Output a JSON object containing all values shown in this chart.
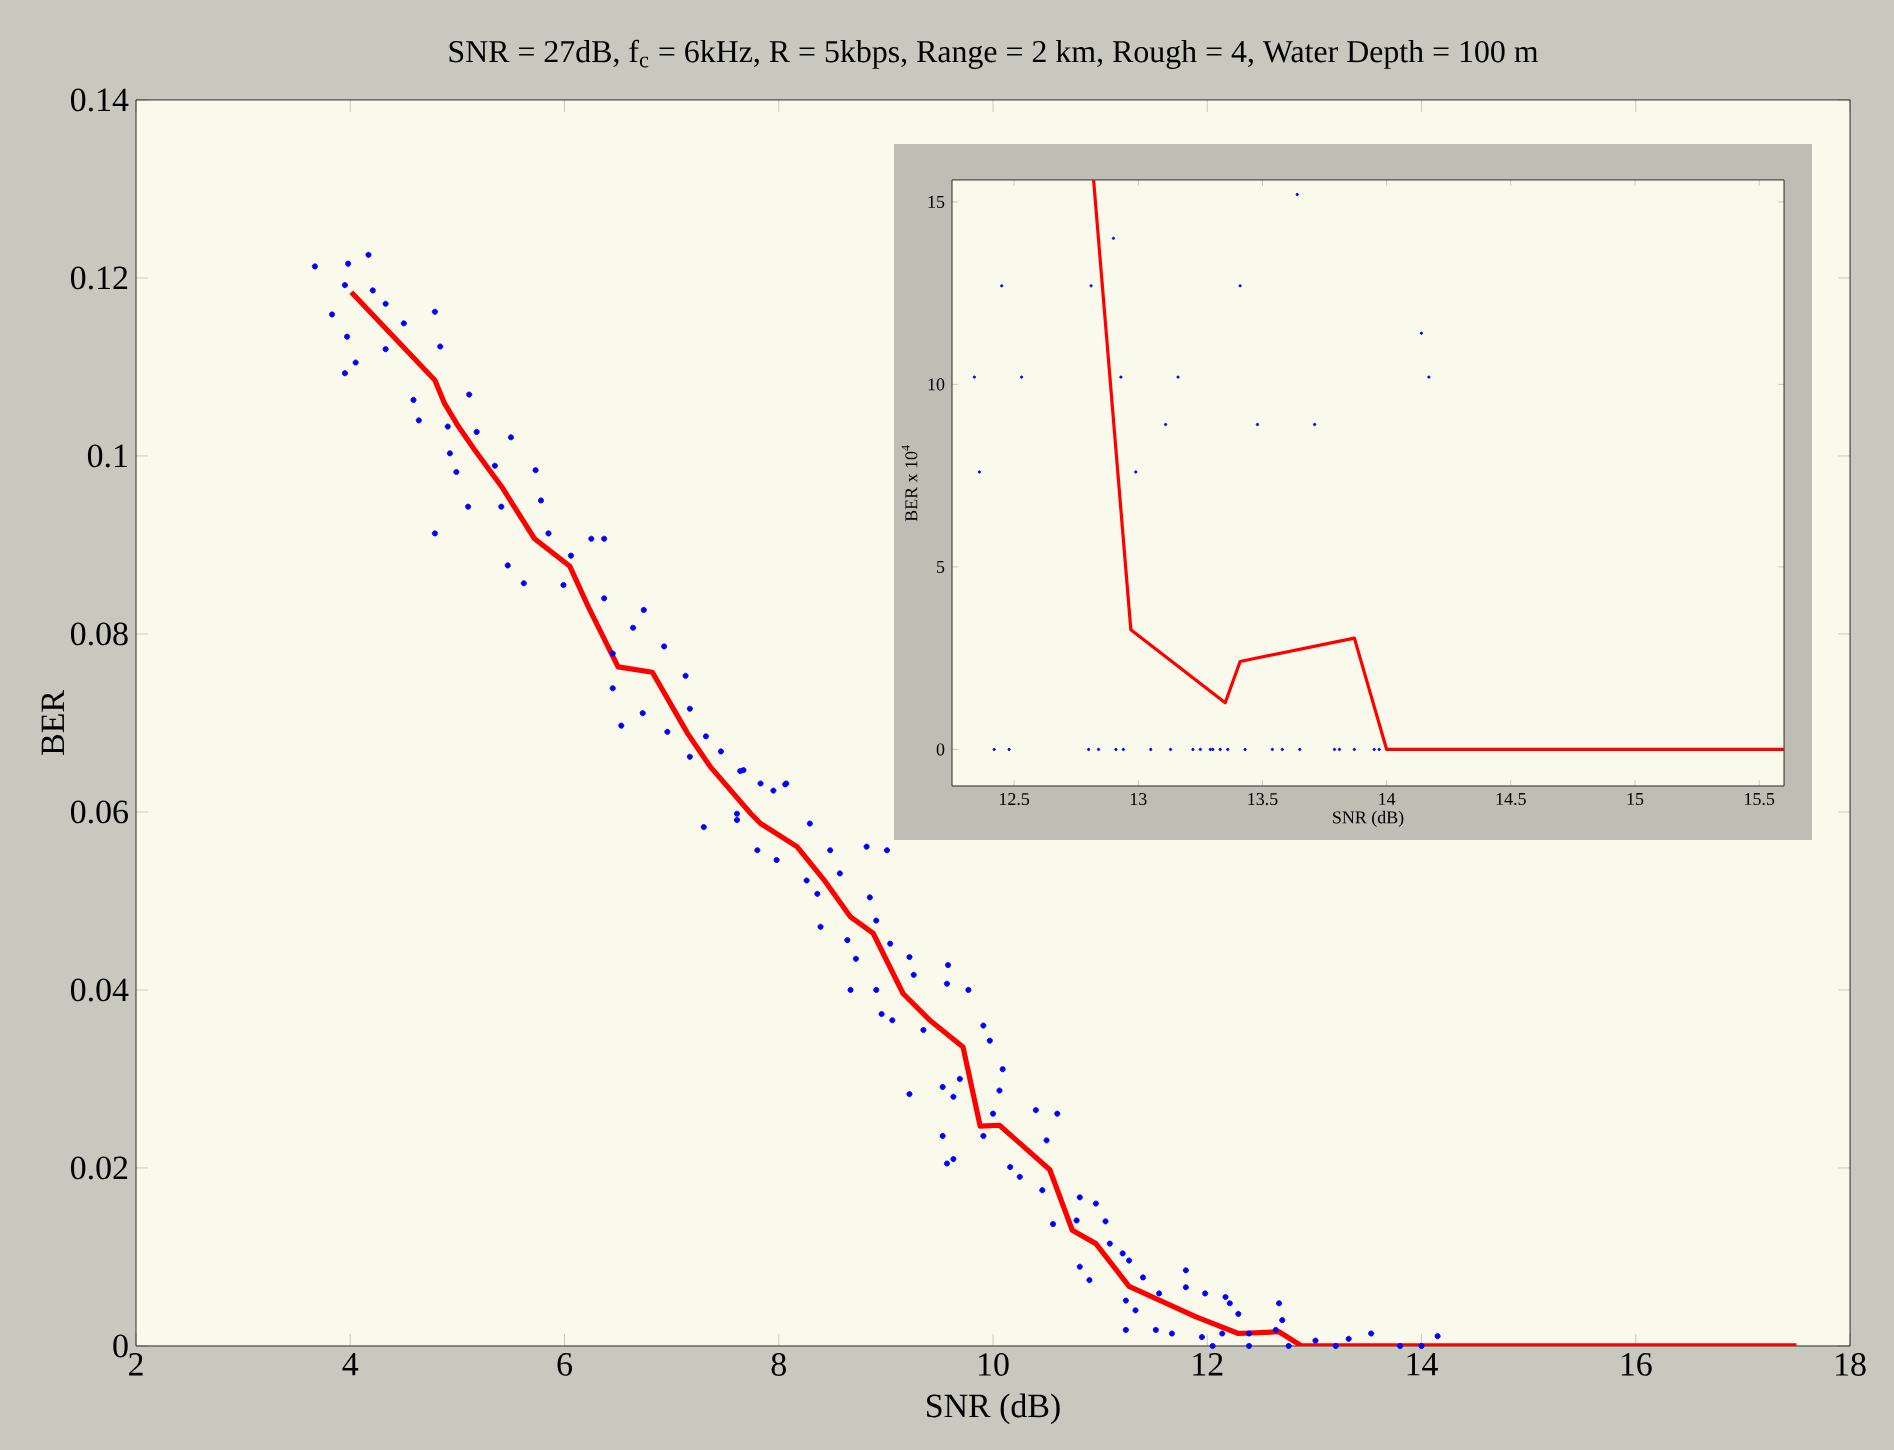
{
  "chart_data": [
    {
      "type": "scatter",
      "title": "SNR = 27dB, f$_{c}$ = 6kHz, R = 5kbps, Range = 2 km, Rough = 4, Water Depth = 100 m",
      "xlabel": "SNR (dB)",
      "ylabel": "BER",
      "xlim": [
        2,
        18
      ],
      "ylim": [
        0,
        0.14
      ],
      "xticks": [
        2,
        4,
        6,
        8,
        10,
        12,
        14,
        16,
        18
      ],
      "yticks": [
        0,
        0.02,
        0.04,
        0.06,
        0.08,
        0.1,
        0.12,
        0.14
      ],
      "series": [
        {
          "color": "#0000ff",
          "x": [
            3.67,
            3.83,
            3.95,
            3.98,
            4.17,
            3.95,
            4.05,
            3.97,
            4.21,
            4.33,
            4.5,
            4.33,
            4.79,
            4.84,
            4.59,
            4.64,
            4.79,
            4.91,
            5.11,
            4.93,
            4.99,
            5.18,
            5.1,
            5.5,
            5.35,
            5.73,
            5.78,
            5.41,
            5.47,
            5.85,
            5.62,
            5.99,
            6.06,
            6.25,
            6.37,
            6.37,
            6.74,
            6.64,
            6.45,
            6.93,
            6.45,
            6.53,
            6.73,
            7.13,
            7.17,
            6.96,
            7.32,
            7.17,
            7.46,
            7.64,
            7.95,
            8.06,
            7.61,
            7.3,
            7.67,
            7.83,
            8.07,
            7.61,
            7.8,
            7.98,
            8.29,
            8.26,
            8.48,
            8.57,
            8.36,
            8.39,
            8.64,
            8.82,
            9.01,
            8.85,
            8.91,
            8.72,
            8.67,
            8.91,
            9.04,
            9.22,
            9.26,
            8.96,
            9.06,
            9.35,
            9.58,
            9.77,
            9.57,
            9.22,
            9.53,
            9.63,
            9.69,
            9.91,
            9.97,
            10.09,
            10.06,
            10.0,
            9.91,
            9.63,
            9.53,
            9.57,
            10.4,
            10.6,
            10.5,
            10.16,
            10.25,
            10.46,
            10.56,
            10.78,
            10.81,
            10.96,
            11.05,
            11.09,
            10.81,
            10.9,
            11.21,
            11.27,
            11.4,
            11.24,
            11.33,
            11.24,
            11.55,
            11.52,
            11.8,
            11.8,
            11.67,
            11.98,
            12.17,
            12.21,
            12.29,
            11.95,
            12.14,
            12.05,
            12.39,
            12.67,
            12.7,
            12.64,
            12.76,
            12.39,
            13.01,
            13.32,
            13.53,
            13.2,
            13.8,
            14.0,
            14.15
          ],
          "values": [
            0.1213,
            0.1159,
            0.1192,
            0.1216,
            0.1226,
            0.1093,
            0.1105,
            0.1134,
            0.1186,
            0.1171,
            0.1149,
            0.112,
            0.1162,
            0.1123,
            0.1063,
            0.104,
            0.0913,
            0.1033,
            0.1069,
            0.1003,
            0.0982,
            0.1027,
            0.0943,
            0.1021,
            0.0989,
            0.0984,
            0.095,
            0.0943,
            0.0877,
            0.0913,
            0.0857,
            0.0855,
            0.0888,
            0.0907,
            0.0907,
            0.084,
            0.0827,
            0.0807,
            0.0778,
            0.0786,
            0.0739,
            0.0697,
            0.0711,
            0.0753,
            0.0716,
            0.069,
            0.0685,
            0.0662,
            0.0668,
            0.0646,
            0.0624,
            0.0631,
            0.0598,
            0.0583,
            0.0647,
            0.0632,
            0.0632,
            0.0591,
            0.0557,
            0.0546,
            0.0587,
            0.0523,
            0.0557,
            0.0531,
            0.0508,
            0.0471,
            0.0456,
            0.0561,
            0.0557,
            0.0504,
            0.0478,
            0.0435,
            0.04,
            0.04,
            0.0452,
            0.0437,
            0.0417,
            0.0373,
            0.0366,
            0.0355,
            0.0428,
            0.04,
            0.0407,
            0.0283,
            0.0291,
            0.028,
            0.03,
            0.036,
            0.0343,
            0.0311,
            0.0287,
            0.0261,
            0.0236,
            0.021,
            0.0236,
            0.0205,
            0.0265,
            0.0261,
            0.0231,
            0.0201,
            0.019,
            0.0175,
            0.0137,
            0.0141,
            0.0167,
            0.016,
            0.014,
            0.0115,
            0.0089,
            0.0074,
            0.0104,
            0.0096,
            0.0077,
            0.0051,
            0.004,
            0.0018,
            0.0059,
            0.0018,
            0.0085,
            0.0066,
            0.0014,
            0.0059,
            0.0055,
            0.0048,
            0.0036,
            0.001,
            0.0014,
            0,
            0.0014,
            0.0048,
            0.0029,
            0.0018,
            0,
            0,
            0.0006,
            0.0008,
            0.0014,
            0,
            0,
            0,
            0.0011
          ]
        },
        {
          "type": "line",
          "color": "#ff0000",
          "x": [
            4.01,
            4.79,
            4.88,
            5.01,
            5.16,
            5.41,
            5.72,
            6.05,
            6.22,
            6.5,
            6.82,
            7.15,
            7.36,
            7.74,
            7.83,
            8.17,
            8.42,
            8.67,
            8.88,
            9.16,
            9.41,
            9.72,
            9.88,
            10.06,
            10.53,
            10.74,
            10.96,
            11.27,
            11.89,
            12.29,
            12.67,
            12.88,
            13.63,
            17.5
          ],
          "values": [
            0.1184,
            0.1085,
            0.1059,
            0.1033,
            0.1007,
            0.0966,
            0.0907,
            0.0876,
            0.0831,
            0.0763,
            0.0757,
            0.0688,
            0.0651,
            0.0598,
            0.0587,
            0.0561,
            0.0524,
            0.0482,
            0.0464,
            0.0396,
            0.0366,
            0.0336,
            0.0247,
            0.0248,
            0.0198,
            0.013,
            0.0115,
            0.0067,
            0.0033,
            0.0014,
            0.0016,
            0,
            0,
            0
          ]
        }
      ]
    },
    {
      "type": "scatter",
      "xlabel": "SNR (dB)",
      "ylabel": "BER x 10$^{4}$",
      "xlim": [
        12.25,
        15.6
      ],
      "ylim": [
        -1,
        15.6
      ],
      "xticks": [
        12.5,
        13,
        13.5,
        14,
        14.5,
        15,
        15.5
      ],
      "yticks": [
        0,
        5,
        10,
        15
      ],
      "series": [
        {
          "color": "#0000ff",
          "x": [
            12.34,
            12.36,
            12.45,
            12.53,
            12.81,
            12.9,
            12.93,
            12.99,
            13.11,
            13.16,
            13.41,
            13.48,
            13.64,
            13.71,
            14.14,
            14.17,
            12.42,
            12.48,
            12.8,
            12.84,
            12.91,
            12.94,
            13.05,
            13.13,
            13.22,
            13.25,
            13.29,
            13.3,
            13.33,
            13.36,
            13.43,
            13.54,
            13.58,
            13.65,
            13.79,
            13.81,
            13.87,
            13.95,
            13.97
          ],
          "values": [
            10.2,
            7.6,
            12.7,
            10.2,
            12.7,
            14.0,
            10.2,
            7.6,
            8.9,
            10.2,
            12.7,
            8.9,
            15.2,
            8.9,
            11.4,
            10.2,
            0,
            0,
            0,
            0,
            0,
            0,
            0,
            0,
            0,
            0,
            0,
            0,
            0,
            0,
            0,
            0,
            0,
            0,
            0,
            0,
            0,
            0,
            0
          ]
        },
        {
          "type": "line",
          "color": "#ff0000",
          "x": [
            12.82,
            12.97,
            13.35,
            13.41,
            13.87,
            14.0,
            15.6
          ],
          "values": [
            15.6,
            3.28,
            1.28,
            2.41,
            3.05,
            0,
            0
          ]
        }
      ]
    }
  ]
}
